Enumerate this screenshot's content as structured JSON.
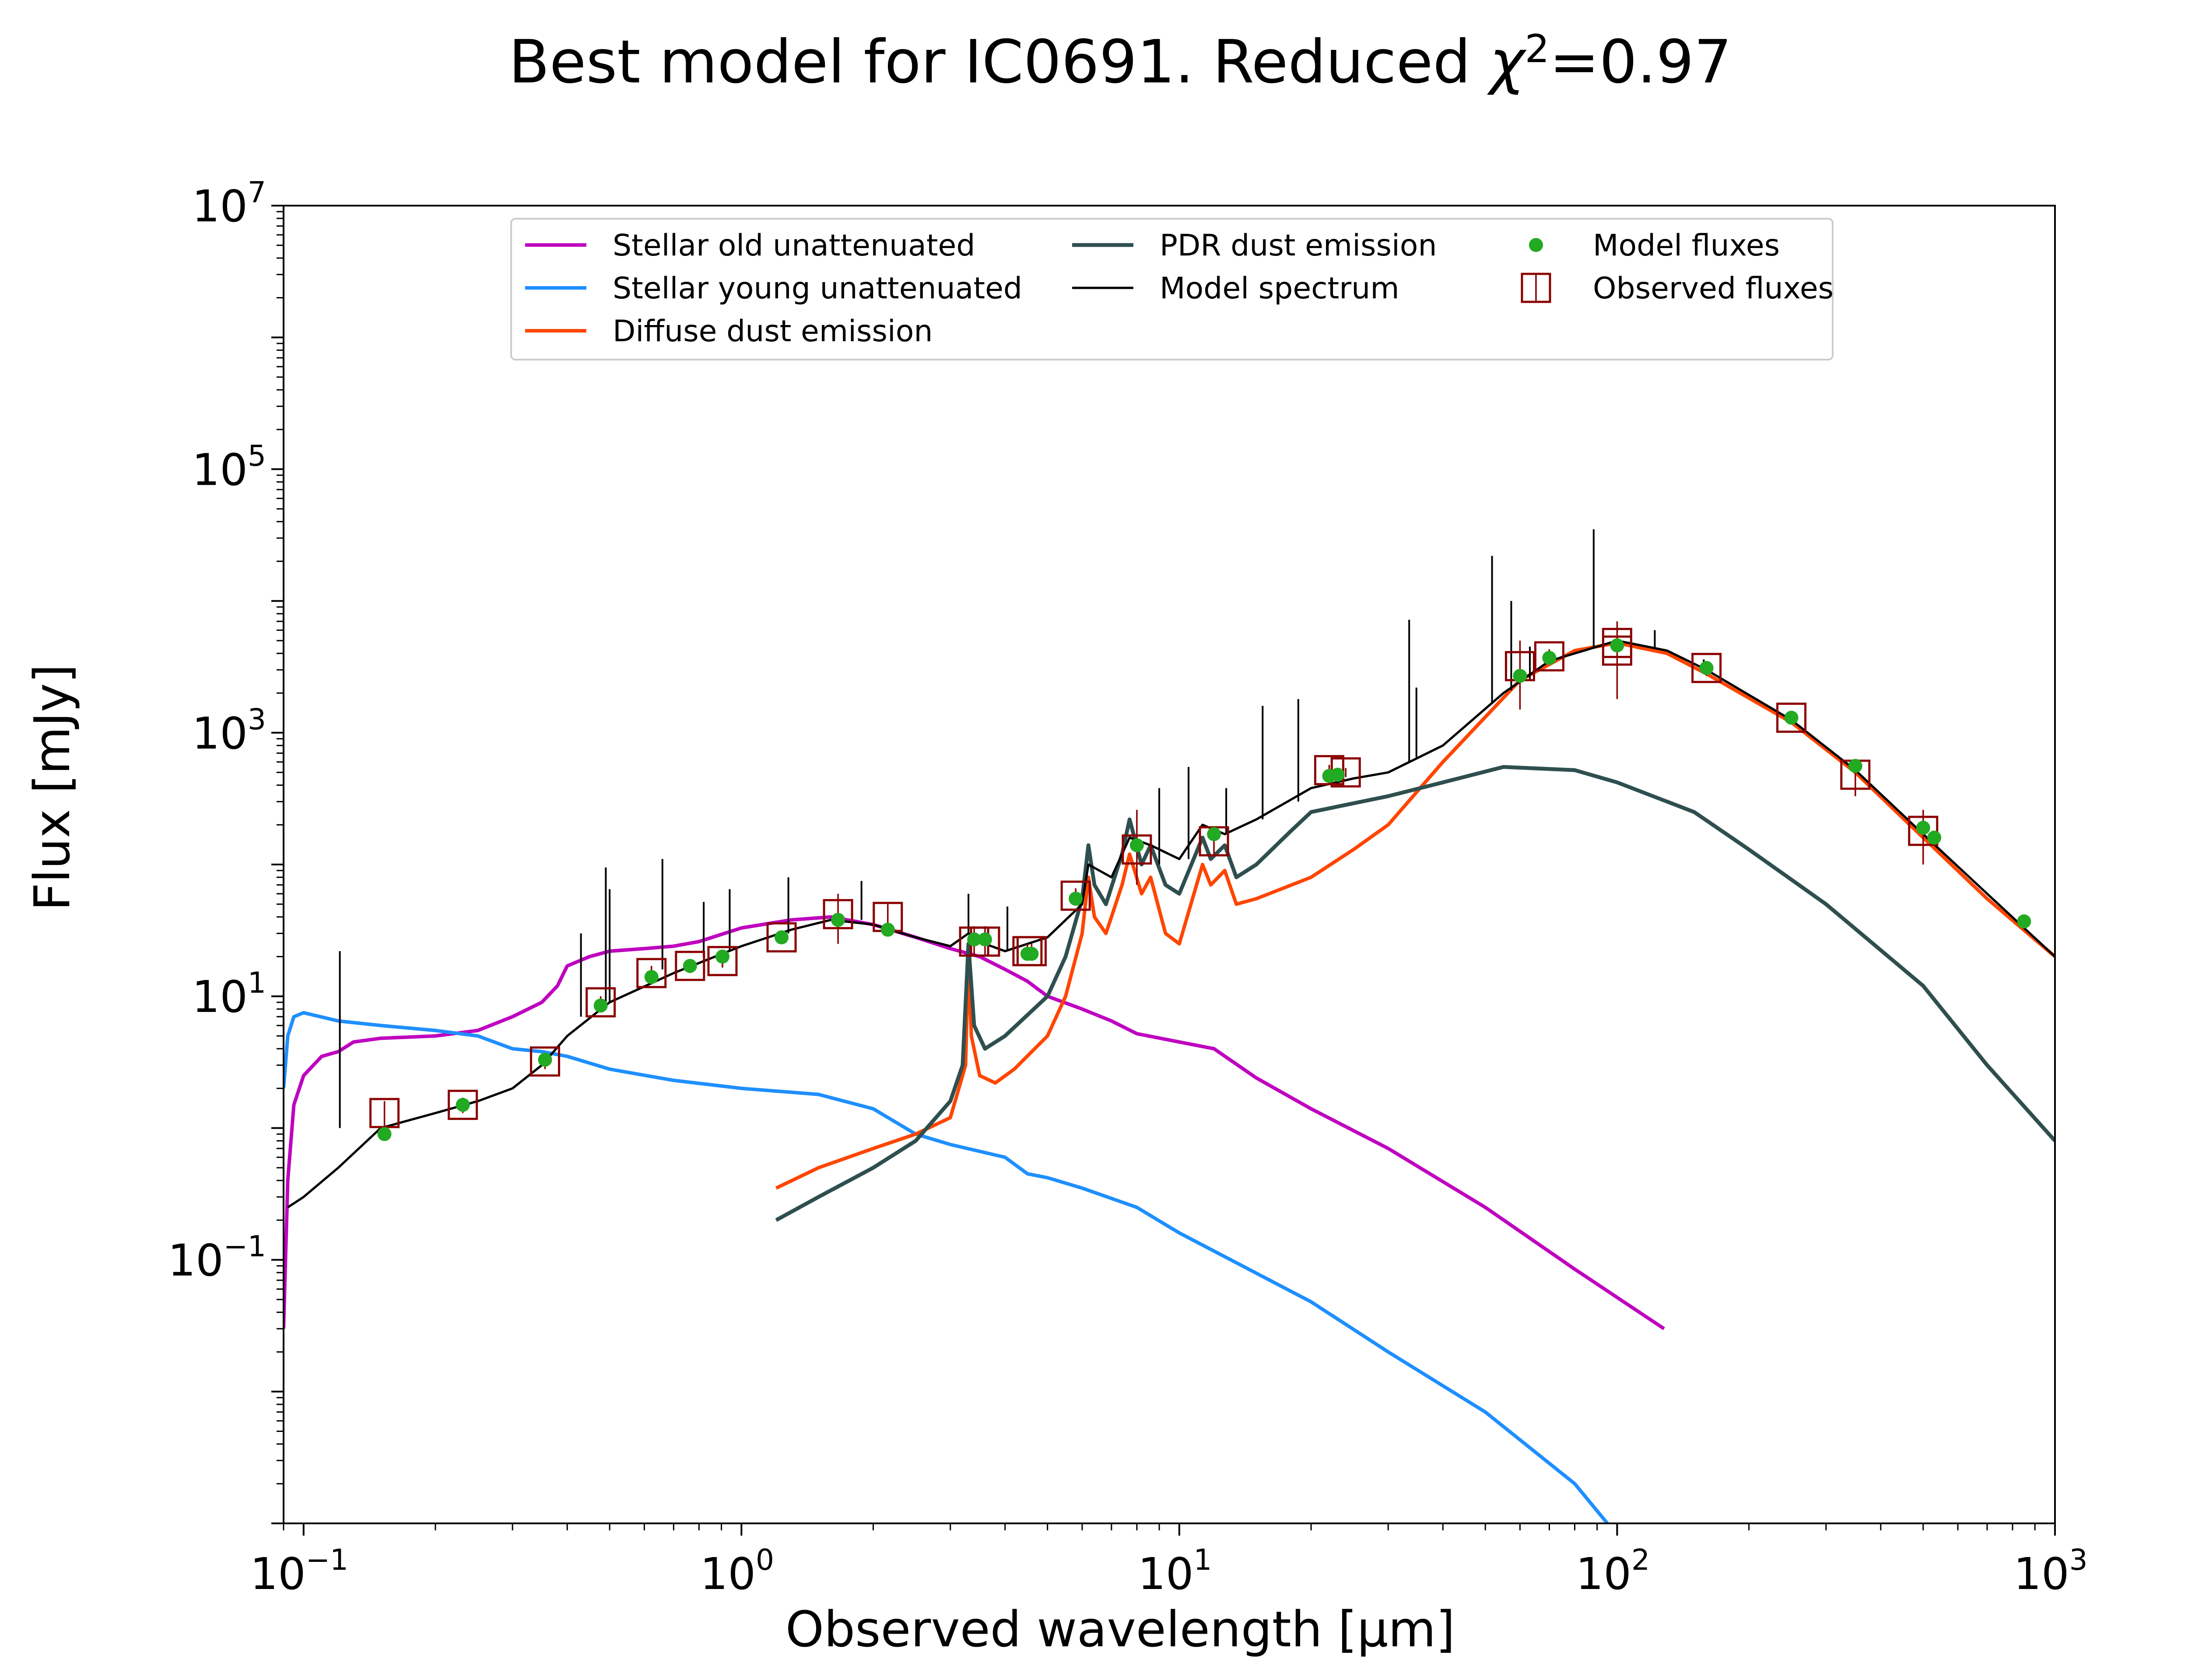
{
  "chart_data": {
    "type": "line",
    "title": "Best model for IC0691. Reduced χ²=0.97",
    "title_parts": {
      "main": "Best model for IC0691. Reduced ",
      "chi": "χ",
      "sup": "2",
      "value": "=0.97"
    },
    "xlabel": "Observed wavelength [μm]",
    "ylabel": "Flux [mJy]",
    "x_scale": "log",
    "y_scale": "log",
    "xlim": [
      0.09,
      1000
    ],
    "ylim": [
      0.001,
      10000000
    ],
    "x_ticks": [
      {
        "value": 0.1,
        "base": "10",
        "exp": "−1"
      },
      {
        "value": 1,
        "base": "10",
        "exp": "0"
      },
      {
        "value": 10,
        "base": "10",
        "exp": "1"
      },
      {
        "value": 100,
        "base": "10",
        "exp": "2"
      },
      {
        "value": 1000,
        "base": "10",
        "exp": "3"
      }
    ],
    "y_ticks": [
      {
        "value": 0.1,
        "base": "10",
        "exp": "−1"
      },
      {
        "value": 10,
        "base": "10",
        "exp": "1"
      },
      {
        "value": 1000,
        "base": "10",
        "exp": "3"
      },
      {
        "value": 100000,
        "base": "10",
        "exp": "5"
      },
      {
        "value": 10000000,
        "base": "10",
        "exp": "7"
      }
    ],
    "legend_position": "top-center",
    "series": [
      {
        "name": "Stellar old unattenuated",
        "color": "#bf00bf",
        "width": 2,
        "points": [
          [
            0.09,
            0.03
          ],
          [
            0.092,
            0.4
          ],
          [
            0.095,
            1.5
          ],
          [
            0.1,
            2.5
          ],
          [
            0.11,
            3.5
          ],
          [
            0.12,
            3.8
          ],
          [
            0.13,
            4.5
          ],
          [
            0.15,
            4.8
          ],
          [
            0.2,
            5
          ],
          [
            0.25,
            5.5
          ],
          [
            0.3,
            7
          ],
          [
            0.35,
            9
          ],
          [
            0.38,
            12
          ],
          [
            0.4,
            17
          ],
          [
            0.45,
            20
          ],
          [
            0.5,
            22
          ],
          [
            0.6,
            23
          ],
          [
            0.7,
            24
          ],
          [
            0.8,
            26
          ],
          [
            1.0,
            33
          ],
          [
            1.3,
            38
          ],
          [
            1.6,
            40
          ],
          [
            2.0,
            35
          ],
          [
            2.5,
            28
          ],
          [
            3.0,
            23
          ],
          [
            3.5,
            20
          ],
          [
            4.0,
            16
          ],
          [
            4.5,
            13
          ],
          [
            5,
            10
          ],
          [
            6,
            8
          ],
          [
            7,
            6.5
          ],
          [
            8,
            5.2
          ],
          [
            10,
            4.5
          ],
          [
            12,
            4
          ],
          [
            15,
            2.4
          ],
          [
            20,
            1.4
          ],
          [
            30,
            0.7
          ],
          [
            50,
            0.25
          ],
          [
            80,
            0.085
          ],
          [
            128,
            0.03
          ]
        ]
      },
      {
        "name": "Stellar young unattenuated",
        "color": "#1e8fff",
        "width": 2,
        "points": [
          [
            0.09,
            2
          ],
          [
            0.092,
            5
          ],
          [
            0.095,
            7
          ],
          [
            0.1,
            7.5
          ],
          [
            0.12,
            6.5
          ],
          [
            0.15,
            6
          ],
          [
            0.2,
            5.5
          ],
          [
            0.25,
            5
          ],
          [
            0.3,
            4
          ],
          [
            0.35,
            3.8
          ],
          [
            0.4,
            3.5
          ],
          [
            0.5,
            2.8
          ],
          [
            0.7,
            2.3
          ],
          [
            1.0,
            2
          ],
          [
            1.5,
            1.8
          ],
          [
            2.0,
            1.4
          ],
          [
            2.5,
            0.9
          ],
          [
            3,
            0.75
          ],
          [
            4,
            0.6
          ],
          [
            4.5,
            0.45
          ],
          [
            5,
            0.42
          ],
          [
            6,
            0.35
          ],
          [
            8,
            0.25
          ],
          [
            10,
            0.16
          ],
          [
            20,
            0.048
          ],
          [
            30,
            0.02
          ],
          [
            50,
            0.007
          ],
          [
            80,
            0.002
          ],
          [
            95,
            0.001
          ]
        ]
      },
      {
        "name": "Diffuse dust emission",
        "color": "#ff4500",
        "width": 2,
        "points": [
          [
            1.2,
            0.35
          ],
          [
            1.5,
            0.5
          ],
          [
            2,
            0.7
          ],
          [
            2.5,
            0.9
          ],
          [
            3.0,
            1.2
          ],
          [
            3.25,
            3
          ],
          [
            3.3,
            20
          ],
          [
            3.35,
            5
          ],
          [
            3.5,
            2.5
          ],
          [
            3.8,
            2.2
          ],
          [
            4.2,
            2.8
          ],
          [
            5,
            5
          ],
          [
            5.5,
            10
          ],
          [
            6.0,
            30
          ],
          [
            6.2,
            80
          ],
          [
            6.4,
            40
          ],
          [
            6.8,
            30
          ],
          [
            7.4,
            70
          ],
          [
            7.7,
            120
          ],
          [
            8.2,
            60
          ],
          [
            8.6,
            80
          ],
          [
            9.3,
            30
          ],
          [
            10,
            25
          ],
          [
            11.3,
            100
          ],
          [
            11.8,
            70
          ],
          [
            12.7,
            90
          ],
          [
            13.5,
            50
          ],
          [
            15,
            55
          ],
          [
            20,
            80
          ],
          [
            25,
            130
          ],
          [
            30,
            200
          ],
          [
            40,
            600
          ],
          [
            60,
            2500
          ],
          [
            80,
            4200
          ],
          [
            100,
            4800
          ],
          [
            130,
            4000
          ],
          [
            160,
            2800
          ],
          [
            250,
            1200
          ],
          [
            350,
            500
          ],
          [
            500,
            160
          ],
          [
            700,
            55
          ],
          [
            1000,
            20
          ]
        ]
      },
      {
        "name": "PDR dust emission",
        "color": "#2f4f4f",
        "width": 2.2,
        "points": [
          [
            1.2,
            0.2
          ],
          [
            1.5,
            0.3
          ],
          [
            2,
            0.5
          ],
          [
            2.5,
            0.8
          ],
          [
            3.0,
            1.6
          ],
          [
            3.2,
            3
          ],
          [
            3.3,
            25
          ],
          [
            3.4,
            6
          ],
          [
            3.6,
            4
          ],
          [
            4,
            5
          ],
          [
            5,
            10
          ],
          [
            5.5,
            20
          ],
          [
            6.0,
            55
          ],
          [
            6.2,
            140
          ],
          [
            6.4,
            70
          ],
          [
            6.8,
            50
          ],
          [
            7.4,
            120
          ],
          [
            7.7,
            220
          ],
          [
            8.2,
            100
          ],
          [
            8.6,
            140
          ],
          [
            9.3,
            70
          ],
          [
            10,
            60
          ],
          [
            11.3,
            160
          ],
          [
            11.8,
            110
          ],
          [
            12.7,
            140
          ],
          [
            13.5,
            80
          ],
          [
            15,
            100
          ],
          [
            18,
            180
          ],
          [
            20,
            250
          ],
          [
            30,
            330
          ],
          [
            40,
            420
          ],
          [
            55,
            550
          ],
          [
            80,
            520
          ],
          [
            100,
            420
          ],
          [
            150,
            250
          ],
          [
            200,
            130
          ],
          [
            300,
            50
          ],
          [
            500,
            12
          ],
          [
            700,
            3
          ],
          [
            1000,
            0.8
          ]
        ]
      },
      {
        "name": "Model spectrum",
        "color": "#000000",
        "width": 1.3,
        "points": [
          [
            0.092,
            0.25
          ],
          [
            0.1,
            0.3
          ],
          [
            0.12,
            0.5
          ],
          [
            0.15,
            1
          ],
          [
            0.2,
            1.3
          ],
          [
            0.25,
            1.6
          ],
          [
            0.3,
            2
          ],
          [
            0.35,
            3
          ],
          [
            0.4,
            5
          ],
          [
            0.5,
            9
          ],
          [
            0.7,
            15
          ],
          [
            1.0,
            24
          ],
          [
            1.3,
            32
          ],
          [
            1.6,
            38
          ],
          [
            2.0,
            35
          ],
          [
            2.5,
            28
          ],
          [
            3.0,
            24
          ],
          [
            3.3,
            30
          ],
          [
            3.6,
            25
          ],
          [
            4,
            22
          ],
          [
            5,
            28
          ],
          [
            6,
            50
          ],
          [
            6.2,
            100
          ],
          [
            7,
            80
          ],
          [
            7.7,
            160
          ],
          [
            8.6,
            140
          ],
          [
            10,
            110
          ],
          [
            11.3,
            200
          ],
          [
            12.7,
            170
          ],
          [
            15,
            220
          ],
          [
            20,
            380
          ],
          [
            25,
            450
          ],
          [
            30,
            500
          ],
          [
            40,
            800
          ],
          [
            55,
            2000
          ],
          [
            70,
            3500
          ],
          [
            100,
            5000
          ],
          [
            130,
            4200
          ],
          [
            160,
            3000
          ],
          [
            250,
            1250
          ],
          [
            350,
            520
          ],
          [
            500,
            170
          ],
          [
            700,
            60
          ],
          [
            1000,
            20
          ]
        ]
      }
    ],
    "emission_lines": [
      {
        "x": 0.121,
        "y_base": 1.0,
        "y_top": 22
      },
      {
        "x": 0.43,
        "y_base": 7,
        "y_top": 30
      },
      {
        "x": 0.49,
        "y_base": 9,
        "y_top": 95
      },
      {
        "x": 0.5,
        "y_base": 9,
        "y_top": 65
      },
      {
        "x": 0.66,
        "y_base": 16,
        "y_top": 110
      },
      {
        "x": 0.82,
        "y_base": 20,
        "y_top": 52
      },
      {
        "x": 0.94,
        "y_base": 22,
        "y_top": 65
      },
      {
        "x": 1.28,
        "y_base": 30,
        "y_top": 80
      },
      {
        "x": 1.88,
        "y_base": 38,
        "y_top": 75
      },
      {
        "x": 3.3,
        "y_base": 30,
        "y_top": 60
      },
      {
        "x": 4.05,
        "y_base": 22,
        "y_top": 48
      },
      {
        "x": 9.0,
        "y_base": 100,
        "y_top": 380
      },
      {
        "x": 10.5,
        "y_base": 110,
        "y_top": 550
      },
      {
        "x": 12.8,
        "y_base": 170,
        "y_top": 380
      },
      {
        "x": 15.5,
        "y_base": 220,
        "y_top": 1600
      },
      {
        "x": 18.7,
        "y_base": 300,
        "y_top": 1800
      },
      {
        "x": 33.5,
        "y_base": 600,
        "y_top": 7200
      },
      {
        "x": 34.8,
        "y_base": 650,
        "y_top": 2200
      },
      {
        "x": 51.8,
        "y_base": 1700,
        "y_top": 22000
      },
      {
        "x": 57.3,
        "y_base": 2100,
        "y_top": 10000
      },
      {
        "x": 63.2,
        "y_base": 2500,
        "y_top": 4500
      },
      {
        "x": 88.4,
        "y_base": 4500,
        "y_top": 35000
      },
      {
        "x": 121.9,
        "y_base": 4400,
        "y_top": 6000
      },
      {
        "x": 157.7,
        "y_base": 3100,
        "y_top": 3600
      }
    ],
    "model_fluxes": {
      "name": "Model fluxes",
      "color": "#22aa22",
      "points": [
        [
          0.153,
          0.9
        ],
        [
          0.231,
          1.5
        ],
        [
          0.356,
          3.3
        ],
        [
          0.477,
          8.5
        ],
        [
          0.623,
          14
        ],
        [
          0.763,
          17
        ],
        [
          0.905,
          20
        ],
        [
          1.235,
          28
        ],
        [
          1.662,
          38
        ],
        [
          2.159,
          32
        ],
        [
          3.4,
          27
        ],
        [
          3.6,
          27
        ],
        [
          4.5,
          21
        ],
        [
          4.6,
          21
        ],
        [
          5.8,
          55
        ],
        [
          8.0,
          140
        ],
        [
          12,
          170
        ],
        [
          22,
          470
        ],
        [
          23,
          480
        ],
        [
          60,
          2700
        ],
        [
          70,
          3700
        ],
        [
          100,
          4600
        ],
        [
          160,
          3100
        ],
        [
          250,
          1300
        ],
        [
          350,
          560
        ],
        [
          500,
          190
        ],
        [
          530,
          160
        ],
        [
          850,
          37
        ]
      ]
    },
    "observed_fluxes": {
      "name": "Observed fluxes",
      "color": "#8b0000",
      "points": [
        {
          "x": 0.153,
          "y": 1.3,
          "lo": 1.0,
          "hi": 1.6
        },
        {
          "x": 0.231,
          "y": 1.5,
          "lo": 1.3,
          "hi": 1.7
        },
        {
          "x": 0.356,
          "y": 3.2,
          "lo": 2.8,
          "hi": 3.6
        },
        {
          "x": 0.477,
          "y": 9,
          "lo": 8,
          "hi": 10
        },
        {
          "x": 0.623,
          "y": 15,
          "lo": 13,
          "hi": 17
        },
        {
          "x": 0.763,
          "y": 17,
          "lo": 15,
          "hi": 19
        },
        {
          "x": 0.905,
          "y": 18.5,
          "lo": 16.5,
          "hi": 20.5
        },
        {
          "x": 1.235,
          "y": 28,
          "lo": 25,
          "hi": 31
        },
        {
          "x": 1.662,
          "y": 42,
          "lo": 25,
          "hi": 60
        },
        {
          "x": 2.159,
          "y": 40,
          "lo": 30,
          "hi": 50
        },
        {
          "x": 3.4,
          "y": 26,
          "lo": 20,
          "hi": 34
        },
        {
          "x": 3.6,
          "y": 26,
          "lo": 20,
          "hi": 34
        },
        {
          "x": 4.5,
          "y": 22,
          "lo": 19,
          "hi": 25
        },
        {
          "x": 4.6,
          "y": 22,
          "lo": 19,
          "hi": 25
        },
        {
          "x": 5.8,
          "y": 58,
          "lo": 50,
          "hi": 66
        },
        {
          "x": 8.0,
          "y": 130,
          "lo": 70,
          "hi": 260
        },
        {
          "x": 12,
          "y": 150,
          "lo": 120,
          "hi": 180
        },
        {
          "x": 22,
          "y": 520,
          "lo": 470,
          "hi": 570
        },
        {
          "x": 24,
          "y": 500,
          "lo": 460,
          "hi": 540
        },
        {
          "x": 60,
          "y": 3200,
          "lo": 1500,
          "hi": 5000
        },
        {
          "x": 70,
          "y": 3800,
          "lo": 3300,
          "hi": 4300
        },
        {
          "x": 100,
          "y": 4200,
          "lo": 1800,
          "hi": 7000
        },
        {
          "x": 100,
          "y": 4800,
          "lo": 4200,
          "hi": 5400
        },
        {
          "x": 160,
          "y": 3100,
          "lo": 2700,
          "hi": 3500
        },
        {
          "x": 250,
          "y": 1300,
          "lo": 1150,
          "hi": 1450
        },
        {
          "x": 350,
          "y": 480,
          "lo": 330,
          "hi": 620
        },
        {
          "x": 500,
          "y": 180,
          "lo": 100,
          "hi": 260
        }
      ]
    }
  }
}
